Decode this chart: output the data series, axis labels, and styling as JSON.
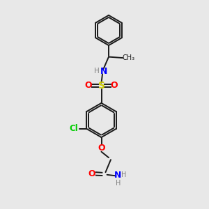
{
  "background_color": "#e8e8e8",
  "bond_color": "#1a1a1a",
  "n_color": "#0000ff",
  "o_color": "#ff0000",
  "s_color": "#cccc00",
  "cl_color": "#00cc00",
  "h_color": "#808080",
  "figsize": [
    3.0,
    3.0
  ],
  "dpi": 100,
  "xlim": [
    0,
    10
  ],
  "ylim": [
    0,
    10
  ]
}
